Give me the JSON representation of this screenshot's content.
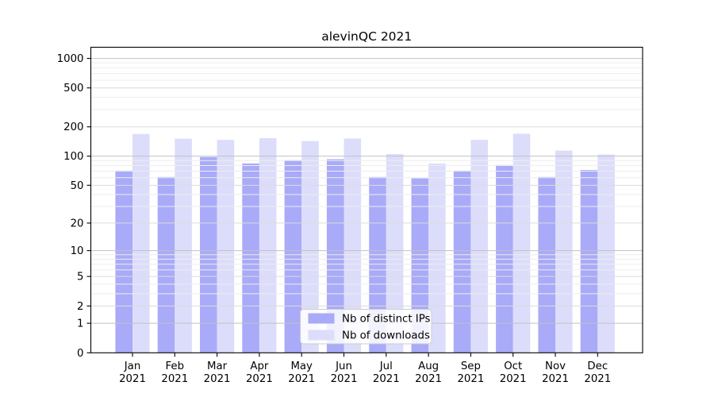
{
  "chart_data": {
    "type": "bar",
    "title": "alevinQC 2021",
    "year_label": "2021",
    "months": [
      "Jan",
      "Feb",
      "Mar",
      "Apr",
      "May",
      "Jun",
      "Jul",
      "Aug",
      "Sep",
      "Oct",
      "Nov",
      "Dec"
    ],
    "categories": [
      "Jan 2021",
      "Feb 2021",
      "Mar 2021",
      "Apr 2021",
      "May 2021",
      "Jun 2021",
      "Jul 2021",
      "Aug 2021",
      "Sep 2021",
      "Oct 2021",
      "Nov 2021",
      "Dec 2021"
    ],
    "series": [
      {
        "name": "Nb of distinct IPs",
        "color": "#a9aaf8",
        "values": [
          71,
          61,
          98,
          84,
          91,
          93,
          61,
          59,
          71,
          81,
          61,
          72
        ]
      },
      {
        "name": "Nb of downloads",
        "color": "#dcddfb",
        "values": [
          169,
          151,
          147,
          153,
          143,
          152,
          105,
          84,
          147,
          170,
          114,
          104
        ]
      }
    ],
    "yscale": "log1p",
    "ylim": [
      0,
      1300
    ],
    "yticks": [
      0,
      1,
      2,
      5,
      10,
      20,
      50,
      100,
      200,
      500,
      1000
    ],
    "ytick_labels": [
      "0",
      "1",
      "2",
      "5",
      "10",
      "20",
      "50",
      "100",
      "200",
      "500",
      "1000"
    ],
    "grid": "horizontal major and log-minor gridlines",
    "legend_position": "inside lower-center",
    "xlabel": "",
    "ylabel": ""
  },
  "colors": {
    "background": "#ffffff",
    "axis": "#000000",
    "grid_pow10": "#c2c2c2",
    "grid_major": "#dcdcdc",
    "grid_minor": "#ededed",
    "legend_bg": "rgba(255,255,255,0.85)",
    "legend_border": "#cccccc"
  }
}
